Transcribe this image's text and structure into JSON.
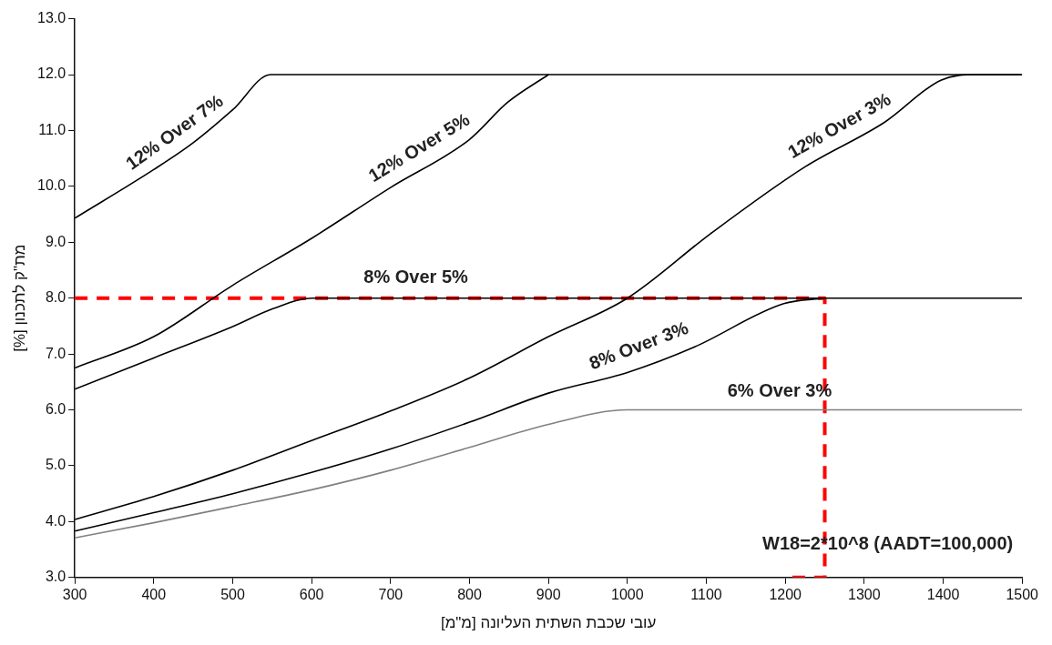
{
  "chart_data": {
    "type": "line",
    "xlabel": "עובי שכבת השתית העליונה [מ\"מ]",
    "ylabel": "מת\"ק לתכנון [%]",
    "xlim": [
      300,
      1500
    ],
    "xticks": [
      300,
      400,
      500,
      600,
      700,
      800,
      900,
      1000,
      1100,
      1200,
      1300,
      1400,
      1500
    ],
    "ylim": [
      3,
      13
    ],
    "yticks": [
      {
        "value": 3,
        "label": "3.0"
      },
      {
        "value": 4,
        "label": "4.0"
      },
      {
        "value": 5,
        "label": "5.0"
      },
      {
        "value": 6,
        "label": "6.0"
      },
      {
        "value": 7,
        "label": "7.0"
      },
      {
        "value": 8,
        "label": "8.0"
      },
      {
        "value": 9,
        "label": "9.0"
      },
      {
        "value": 10,
        "label": "10.0"
      },
      {
        "value": 11,
        "label": "11.0"
      },
      {
        "value": 12,
        "label": "12.0"
      },
      {
        "value": 13,
        "label": "13.0"
      }
    ],
    "grid": false,
    "legend": false,
    "marker": "none",
    "line_style": "solid",
    "series": [
      {
        "name": "12% Over 7%",
        "color": "#000000",
        "x": [
          300,
          400,
          450,
          500,
          548,
          1500
        ],
        "values": [
          9.43,
          10.3,
          10.78,
          11.37,
          12.0,
          12.0
        ]
      },
      {
        "name": "12% Over 5%",
        "color": "#000000",
        "x": [
          300,
          400,
          500,
          600,
          700,
          800,
          848,
          900
        ],
        "values": [
          6.75,
          7.31,
          8.23,
          9.07,
          9.98,
          10.84,
          11.5,
          12.0
        ]
      },
      {
        "name": "8% Over 5%",
        "color": "#000000",
        "x": [
          300,
          400,
          500,
          551,
          600,
          1500
        ],
        "values": [
          6.37,
          6.93,
          7.49,
          7.81,
          8.0,
          8.0
        ]
      },
      {
        "name": "12% Over 3%",
        "color": "#000000",
        "x": [
          300,
          400,
          500,
          600,
          700,
          800,
          900,
          1000,
          1105,
          1225,
          1326,
          1397,
          1442,
          1500
        ],
        "values": [
          4.04,
          4.45,
          4.92,
          5.45,
          5.98,
          6.57,
          7.31,
          8.0,
          9.15,
          10.35,
          11.15,
          11.9,
          12.0,
          12.0
        ]
      },
      {
        "name": "8% Over 3%",
        "color": "#000000",
        "x": [
          300,
          400,
          500,
          600,
          700,
          800,
          900,
          1000,
          1084,
          1198,
          1250
        ],
        "values": [
          3.83,
          4.16,
          4.5,
          4.88,
          5.3,
          5.78,
          6.3,
          6.67,
          7.12,
          7.9,
          8.0
        ]
      },
      {
        "name": "6% Over 3%",
        "color": "#808080",
        "x": [
          300,
          400,
          500,
          600,
          700,
          800,
          900,
          1000,
          1500
        ],
        "values": [
          3.71,
          3.98,
          4.27,
          4.57,
          4.92,
          5.33,
          5.74,
          6.0,
          6.0
        ]
      },
      {
        "color": "#ff0000",
        "line_style": "dashed",
        "x": [
          300,
          1250,
          1250,
          1200
        ],
        "values": [
          8,
          8,
          3,
          3
        ]
      }
    ],
    "annotations": [
      "W18=2*10^8 (AADT=100,000)"
    ]
  }
}
